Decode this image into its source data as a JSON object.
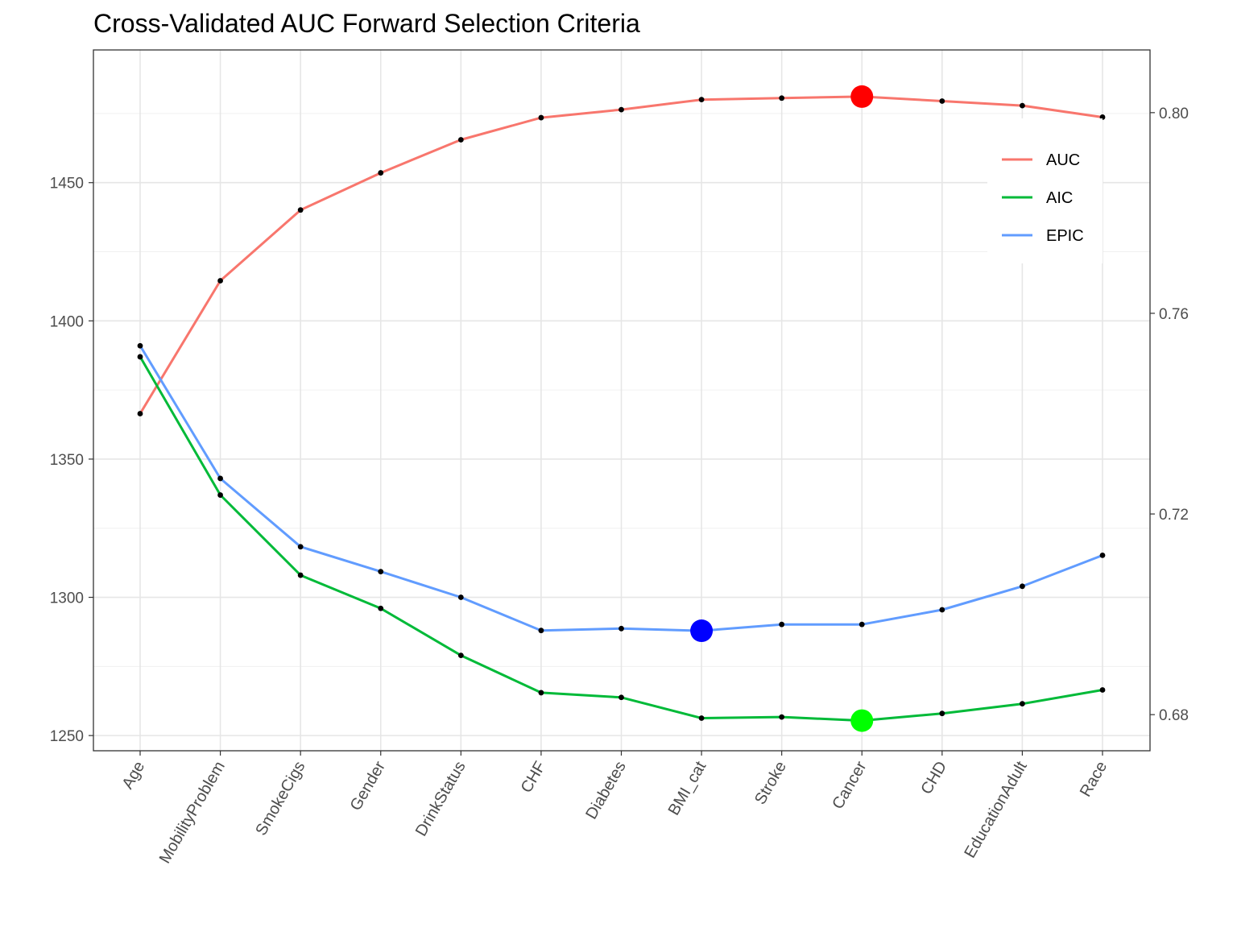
{
  "chart_data": {
    "type": "line",
    "title": "Cross-Validated AUC Forward  Selection Criteria",
    "xlabel": "",
    "ylabel": "",
    "categories": [
      "Age",
      "MobilityProblem",
      "SmokeCigs",
      "Gender",
      "DrinkStatus",
      "CHF",
      "Diabetes",
      "BMI_cat",
      "Stroke",
      "Cancer",
      "CHD",
      "EducationAdult",
      "Race"
    ],
    "left_axis": {
      "ylim": [
        1244.5,
        1498
      ],
      "ticks": [
        "1250",
        "1300",
        "1350",
        "1400",
        "1450"
      ],
      "tick_values": [
        1250,
        1300,
        1350,
        1400,
        1450
      ]
    },
    "right_axis": {
      "ylim": [
        0.6728,
        0.8125
      ],
      "ticks": [
        "0.68",
        "0.72",
        "0.76",
        "0.80"
      ],
      "tick_values": [
        0.68,
        0.72,
        0.76,
        0.8
      ]
    },
    "series": [
      {
        "name": "AUC",
        "axis": "right",
        "color": "#F8766D",
        "values": [
          0.74,
          0.7665,
          0.7806,
          0.788,
          0.7946,
          0.799,
          0.8006,
          0.8026,
          0.8029,
          0.8032,
          0.8023,
          0.8014,
          0.7991
        ],
        "highlight": {
          "category": "Cancer",
          "value": 0.8032,
          "color": "#FF0000"
        }
      },
      {
        "name": "AIC",
        "axis": "left",
        "color": "#00BA38",
        "values": [
          1387,
          1337,
          1308,
          1296,
          1279,
          1265.5,
          1263.8,
          1256.3,
          1256.7,
          1255.4,
          1258,
          1261.5,
          1266.5
        ],
        "highlight": {
          "category": "Cancer",
          "value": 1255.4,
          "color": "#00FF00"
        }
      },
      {
        "name": "EPIC",
        "axis": "left",
        "color": "#619CFF",
        "values": [
          1391,
          1343,
          1318.3,
          1309.3,
          1300,
          1288,
          1288.7,
          1287.9,
          1290.2,
          1290.2,
          1295.5,
          1304,
          1315.2
        ],
        "highlight": {
          "category": "BMI_cat",
          "value": 1287.9,
          "color": "#0000FF"
        }
      }
    ],
    "grid": true,
    "legend_position": "top-right"
  }
}
